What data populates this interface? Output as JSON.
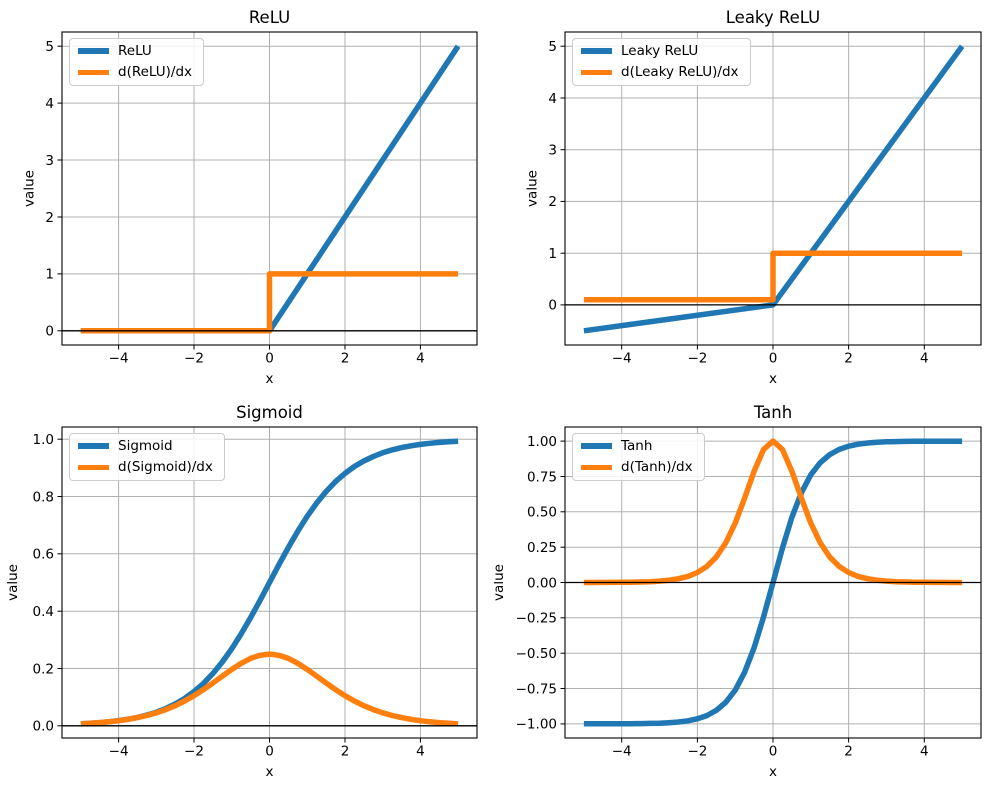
{
  "figure": {
    "background": "#ffffff"
  },
  "colors": {
    "function_line": "#1f77b4",
    "derivative_line": "#ff7f0e",
    "grid": "#b0b0b0",
    "axis": "#000000",
    "zero_line": "#000000",
    "text": "#000000",
    "legend_border": "#cccccc"
  },
  "chart_data": [
    {
      "type": "line",
      "title": "ReLU",
      "xlabel": "x",
      "ylabel": "value",
      "grid": true,
      "legend_position": "upper left",
      "xlim": [
        -5.5,
        5.5
      ],
      "ylim": [
        -0.25,
        5.25
      ],
      "xticks": {
        "values": [
          -4,
          -2,
          0,
          2,
          4
        ],
        "labels": [
          "−4",
          "−2",
          "0",
          "2",
          "4"
        ]
      },
      "yticks": {
        "values": [
          0,
          1,
          2,
          3,
          4,
          5
        ],
        "labels": [
          "0",
          "1",
          "2",
          "3",
          "4",
          "5"
        ]
      },
      "series": [
        {
          "name": "ReLU",
          "color": "#1f77b4",
          "points": [
            [
              -5,
              0
            ],
            [
              0,
              0
            ],
            [
              5,
              5
            ]
          ]
        },
        {
          "name": "d(ReLU)/dx",
          "color": "#ff7f0e",
          "points": [
            [
              -5,
              0
            ],
            [
              0,
              0
            ],
            [
              0,
              1
            ],
            [
              5,
              1
            ]
          ]
        }
      ]
    },
    {
      "type": "line",
      "title": "Leaky ReLU",
      "xlabel": "x",
      "ylabel": "value",
      "grid": true,
      "legend_position": "upper left",
      "xlim": [
        -5.5,
        5.5
      ],
      "ylim": [
        -0.775,
        5.275
      ],
      "xticks": {
        "values": [
          -4,
          -2,
          0,
          2,
          4
        ],
        "labels": [
          "−4",
          "−2",
          "0",
          "2",
          "4"
        ]
      },
      "yticks": {
        "values": [
          0,
          1,
          2,
          3,
          4,
          5
        ],
        "labels": [
          "0",
          "1",
          "2",
          "3",
          "4",
          "5"
        ]
      },
      "series": [
        {
          "name": "Leaky ReLU",
          "color": "#1f77b4",
          "points": [
            [
              -5,
              -0.5
            ],
            [
              0,
              0
            ],
            [
              5,
              5
            ]
          ]
        },
        {
          "name": "d(Leaky ReLU)/dx",
          "color": "#ff7f0e",
          "points": [
            [
              -5,
              0.1
            ],
            [
              0,
              0.1
            ],
            [
              0,
              1
            ],
            [
              5,
              1
            ]
          ]
        }
      ]
    },
    {
      "type": "line",
      "title": "Sigmoid",
      "xlabel": "x",
      "ylabel": "value",
      "grid": true,
      "legend_position": "upper left",
      "xlim": [
        -5.5,
        5.5
      ],
      "ylim": [
        -0.0427,
        1.0427
      ],
      "xticks": {
        "values": [
          -4,
          -2,
          0,
          2,
          4
        ],
        "labels": [
          "−4",
          "−2",
          "0",
          "2",
          "4"
        ]
      },
      "yticks": {
        "values": [
          0,
          0.2,
          0.4,
          0.6,
          0.8,
          1.0
        ],
        "labels": [
          "0.0",
          "0.2",
          "0.4",
          "0.6",
          "0.8",
          "1.0"
        ]
      },
      "series": [
        {
          "name": "Sigmoid",
          "color": "#1f77b4",
          "points": [
            [
              -5,
              0.0067
            ],
            [
              -4.75,
              0.0086
            ],
            [
              -4.5,
              0.011
            ],
            [
              -4.25,
              0.0141
            ],
            [
              -4,
              0.018
            ],
            [
              -3.75,
              0.023
            ],
            [
              -3.5,
              0.0293
            ],
            [
              -3.25,
              0.0373
            ],
            [
              -3,
              0.0474
            ],
            [
              -2.75,
              0.0601
            ],
            [
              -2.5,
              0.0759
            ],
            [
              -2.25,
              0.0953
            ],
            [
              -2,
              0.1192
            ],
            [
              -1.75,
              0.148
            ],
            [
              -1.5,
              0.1824
            ],
            [
              -1.25,
              0.2227
            ],
            [
              -1,
              0.2689
            ],
            [
              -0.75,
              0.3208
            ],
            [
              -0.5,
              0.3775
            ],
            [
              -0.25,
              0.4378
            ],
            [
              0,
              0.5
            ],
            [
              0.25,
              0.5622
            ],
            [
              0.5,
              0.6225
            ],
            [
              0.75,
              0.6792
            ],
            [
              1,
              0.7311
            ],
            [
              1.25,
              0.7773
            ],
            [
              1.5,
              0.8176
            ],
            [
              1.75,
              0.852
            ],
            [
              2,
              0.8808
            ],
            [
              2.25,
              0.9047
            ],
            [
              2.5,
              0.9241
            ],
            [
              2.75,
              0.9399
            ],
            [
              3,
              0.9526
            ],
            [
              3.25,
              0.9627
            ],
            [
              3.5,
              0.9707
            ],
            [
              3.75,
              0.977
            ],
            [
              4,
              0.982
            ],
            [
              4.25,
              0.9859
            ],
            [
              4.5,
              0.989
            ],
            [
              4.75,
              0.9914
            ],
            [
              5,
              0.9933
            ]
          ]
        },
        {
          "name": "d(Sigmoid)/dx",
          "color": "#ff7f0e",
          "points": [
            [
              -5,
              0.0066
            ],
            [
              -4.75,
              0.0085
            ],
            [
              -4.5,
              0.0109
            ],
            [
              -4.25,
              0.0139
            ],
            [
              -4,
              0.0177
            ],
            [
              -3.75,
              0.0224
            ],
            [
              -3.5,
              0.0285
            ],
            [
              -3.25,
              0.0359
            ],
            [
              -3,
              0.0452
            ],
            [
              -2.75,
              0.0565
            ],
            [
              -2.5,
              0.0701
            ],
            [
              -2.25,
              0.0863
            ],
            [
              -2,
              0.105
            ],
            [
              -1.75,
              0.1261
            ],
            [
              -1.5,
              0.1491
            ],
            [
              -1.25,
              0.1731
            ],
            [
              -1,
              0.1966
            ],
            [
              -0.75,
              0.2179
            ],
            [
              -0.5,
              0.235
            ],
            [
              -0.25,
              0.2461
            ],
            [
              0,
              0.25
            ],
            [
              0.25,
              0.2461
            ],
            [
              0.5,
              0.235
            ],
            [
              0.75,
              0.2179
            ],
            [
              1,
              0.1966
            ],
            [
              1.25,
              0.1731
            ],
            [
              1.5,
              0.1491
            ],
            [
              1.75,
              0.1261
            ],
            [
              2,
              0.105
            ],
            [
              2.25,
              0.0863
            ],
            [
              2.5,
              0.0701
            ],
            [
              2.75,
              0.0565
            ],
            [
              3,
              0.0452
            ],
            [
              3.25,
              0.0359
            ],
            [
              3.5,
              0.0285
            ],
            [
              3.75,
              0.0224
            ],
            [
              4,
              0.0177
            ],
            [
              4.25,
              0.0139
            ],
            [
              4.5,
              0.0109
            ],
            [
              4.75,
              0.0085
            ],
            [
              5,
              0.0066
            ]
          ]
        }
      ]
    },
    {
      "type": "line",
      "title": "Tanh",
      "xlabel": "x",
      "ylabel": "value",
      "grid": true,
      "legend_position": "upper left",
      "xlim": [
        -5.5,
        5.5
      ],
      "ylim": [
        -1.1,
        1.1
      ],
      "xticks": {
        "values": [
          -4,
          -2,
          0,
          2,
          4
        ],
        "labels": [
          "−4",
          "−2",
          "0",
          "2",
          "4"
        ]
      },
      "yticks": {
        "values": [
          -1,
          -0.75,
          -0.5,
          -0.25,
          0,
          0.25,
          0.5,
          0.75,
          1
        ],
        "labels": [
          "−1.00",
          "−0.75",
          "−0.50",
          "−0.25",
          "0.00",
          "0.25",
          "0.50",
          "0.75",
          "1.00"
        ]
      },
      "series": [
        {
          "name": "Tanh",
          "color": "#1f77b4",
          "points": [
            [
              -5,
              -0.9999
            ],
            [
              -4.75,
              -0.9999
            ],
            [
              -4.5,
              -0.9998
            ],
            [
              -4.25,
              -0.9996
            ],
            [
              -4,
              -0.9993
            ],
            [
              -3.75,
              -0.9989
            ],
            [
              -3.5,
              -0.9982
            ],
            [
              -3.25,
              -0.997
            ],
            [
              -3,
              -0.9951
            ],
            [
              -2.75,
              -0.9919
            ],
            [
              -2.5,
              -0.9866
            ],
            [
              -2.25,
              -0.978
            ],
            [
              -2,
              -0.964
            ],
            [
              -1.75,
              -0.9414
            ],
            [
              -1.5,
              -0.9051
            ],
            [
              -1.25,
              -0.8483
            ],
            [
              -1,
              -0.7616
            ],
            [
              -0.75,
              -0.6351
            ],
            [
              -0.5,
              -0.4621
            ],
            [
              -0.25,
              -0.2449
            ],
            [
              0,
              0
            ],
            [
              0.25,
              0.2449
            ],
            [
              0.5,
              0.4621
            ],
            [
              0.75,
              0.6351
            ],
            [
              1,
              0.7616
            ],
            [
              1.25,
              0.8483
            ],
            [
              1.5,
              0.9051
            ],
            [
              1.75,
              0.9414
            ],
            [
              2,
              0.964
            ],
            [
              2.25,
              0.978
            ],
            [
              2.5,
              0.9866
            ],
            [
              2.75,
              0.9919
            ],
            [
              3,
              0.9951
            ],
            [
              3.25,
              0.997
            ],
            [
              3.5,
              0.9982
            ],
            [
              3.75,
              0.9989
            ],
            [
              4,
              0.9993
            ],
            [
              4.25,
              0.9996
            ],
            [
              4.5,
              0.9998
            ],
            [
              4.75,
              0.9999
            ],
            [
              5,
              0.9999
            ]
          ]
        },
        {
          "name": "d(Tanh)/dx",
          "color": "#ff7f0e",
          "points": [
            [
              -5,
              0.0002
            ],
            [
              -4.75,
              0.0003
            ],
            [
              -4.5,
              0.0005
            ],
            [
              -4.25,
              0.0008
            ],
            [
              -4,
              0.0013
            ],
            [
              -3.75,
              0.0022
            ],
            [
              -3.5,
              0.0037
            ],
            [
              -3.25,
              0.006
            ],
            [
              -3,
              0.0099
            ],
            [
              -2.75,
              0.0162
            ],
            [
              -2.5,
              0.0266
            ],
            [
              -2.25,
              0.0435
            ],
            [
              -2,
              0.0707
            ],
            [
              -1.75,
              0.1138
            ],
            [
              -1.5,
              0.1807
            ],
            [
              -1.25,
              0.2804
            ],
            [
              -1,
              0.42
            ],
            [
              -0.75,
              0.5966
            ],
            [
              -0.5,
              0.7864
            ],
            [
              -0.25,
              0.94
            ],
            [
              0,
              1
            ],
            [
              0.25,
              0.94
            ],
            [
              0.5,
              0.7864
            ],
            [
              0.75,
              0.5966
            ],
            [
              1,
              0.42
            ],
            [
              1.25,
              0.2804
            ],
            [
              1.5,
              0.1807
            ],
            [
              1.75,
              0.1138
            ],
            [
              2,
              0.0707
            ],
            [
              2.25,
              0.0435
            ],
            [
              2.5,
              0.0266
            ],
            [
              2.75,
              0.0162
            ],
            [
              3,
              0.0099
            ],
            [
              3.25,
              0.006
            ],
            [
              3.5,
              0.0037
            ],
            [
              3.75,
              0.0022
            ],
            [
              4,
              0.0013
            ],
            [
              4.25,
              0.0008
            ],
            [
              4.5,
              0.0005
            ],
            [
              4.75,
              0.0003
            ],
            [
              5,
              0.0002
            ]
          ]
        }
      ]
    }
  ]
}
